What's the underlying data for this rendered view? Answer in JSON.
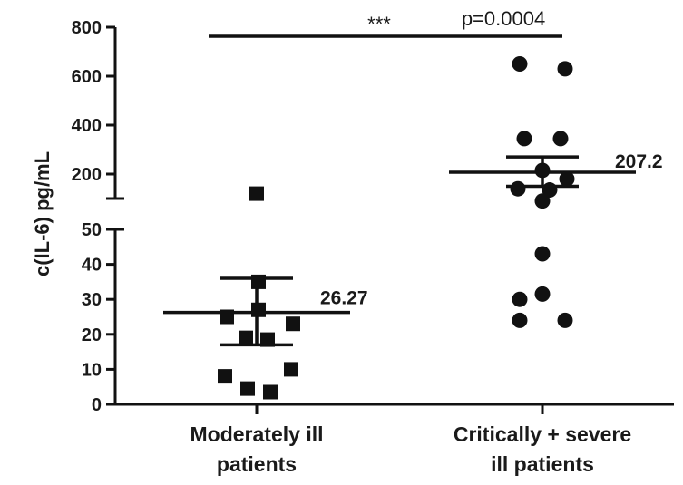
{
  "chart_data": {
    "type": "scatter",
    "ylabel": "c(IL-6) pg/mL",
    "y_axis_break": true,
    "y_ticks_lower": [
      "0",
      "10",
      "20",
      "30",
      "40",
      "50"
    ],
    "y_ticks_upper": [
      "200",
      "400",
      "600",
      "800"
    ],
    "categories": [
      {
        "line1": "Moderately ill",
        "line2": "patients"
      },
      {
        "line1": "Critically + severe",
        "line2": "ill patients"
      }
    ],
    "series": [
      {
        "marker": "square",
        "values": [
          120,
          35,
          27,
          25,
          23,
          19,
          18.5,
          10,
          8,
          4.5,
          3.5
        ],
        "mean": 26.27,
        "mean_label": "26.27",
        "sem_upper": 36,
        "sem_lower": 17
      },
      {
        "marker": "circle",
        "values": [
          650,
          630,
          345,
          345,
          215,
          180,
          140,
          135,
          90,
          43,
          31.5,
          30,
          24,
          24
        ],
        "mean": 207.2,
        "mean_label": "207.2",
        "sem_upper": 270,
        "sem_lower": 150
      }
    ],
    "significance": {
      "stars": "***",
      "p_label": "p=0.0004"
    }
  }
}
